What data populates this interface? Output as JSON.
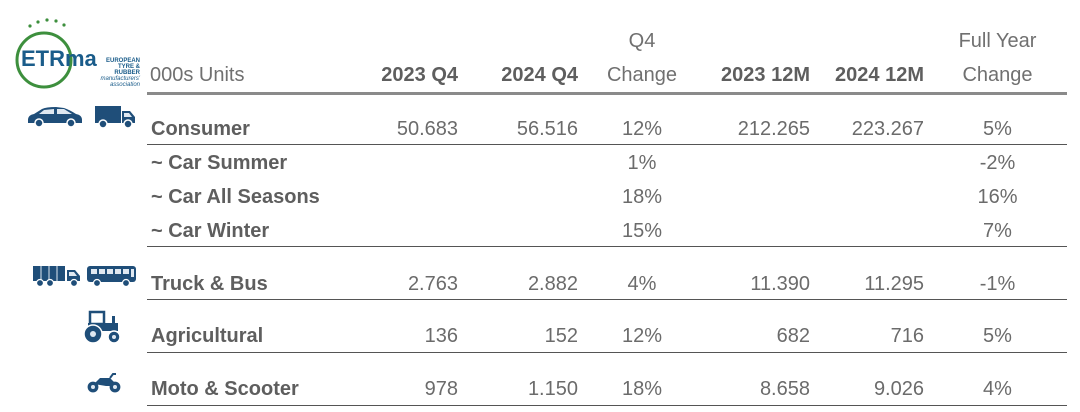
{
  "logo": {
    "mark": "ETRma",
    "org_lines": [
      "EUROPEAN",
      "TYRE & RUBBER",
      "manufacturers'",
      "association"
    ],
    "accent": "#1a5c8a",
    "green": "#3d8f3d"
  },
  "header": {
    "units": "000s Units",
    "col_2023q4": "2023 Q4",
    "col_2024q4": "2024 Q4",
    "q4_change_top": "Q4",
    "q4_change_bottom": "Change",
    "col_2023_12m": "2023 12M",
    "col_2024_12m": "2024 12M",
    "fy_change_top": "Full Year",
    "fy_change_bottom": "Change"
  },
  "rows": {
    "consumer": {
      "label": "Consumer",
      "q4_2023": "50.683",
      "q4_2024": "56.516",
      "q4_change": "12%",
      "m12_2023": "212.265",
      "m12_2024": "223.267",
      "fy_change": "5%",
      "icons": [
        "car-icon",
        "van-icon"
      ]
    },
    "car_summer": {
      "label": "~ Car Summer",
      "q4_change": "1%",
      "fy_change": "-2%"
    },
    "car_all_seasons": {
      "label": "~ Car All Seasons",
      "q4_change": "18%",
      "fy_change": "16%"
    },
    "car_winter": {
      "label": "~ Car Winter",
      "q4_change": "15%",
      "fy_change": "7%"
    },
    "truck_bus": {
      "label": "Truck & Bus",
      "q4_2023": "2.763",
      "q4_2024": "2.882",
      "q4_change": "4%",
      "m12_2023": "11.390",
      "m12_2024": "11.295",
      "fy_change": "-1%",
      "icons": [
        "truck-icon",
        "bus-icon"
      ]
    },
    "agricultural": {
      "label": "Agricultural",
      "q4_2023": "136",
      "q4_2024": "152",
      "q4_change": "12%",
      "m12_2023": "682",
      "m12_2024": "716",
      "fy_change": "5%",
      "icons": [
        "tractor-icon"
      ]
    },
    "moto_scooter": {
      "label": "Moto & Scooter",
      "q4_2023": "978",
      "q4_2024": "1.150",
      "q4_change": "18%",
      "m12_2023": "8.658",
      "m12_2024": "9.026",
      "fy_change": "4%",
      "icons": [
        "motorcycle-icon"
      ]
    }
  },
  "colors": {
    "icon": "#1f4e79",
    "rule": "#555555",
    "header_rule": "#8a8a8a"
  }
}
